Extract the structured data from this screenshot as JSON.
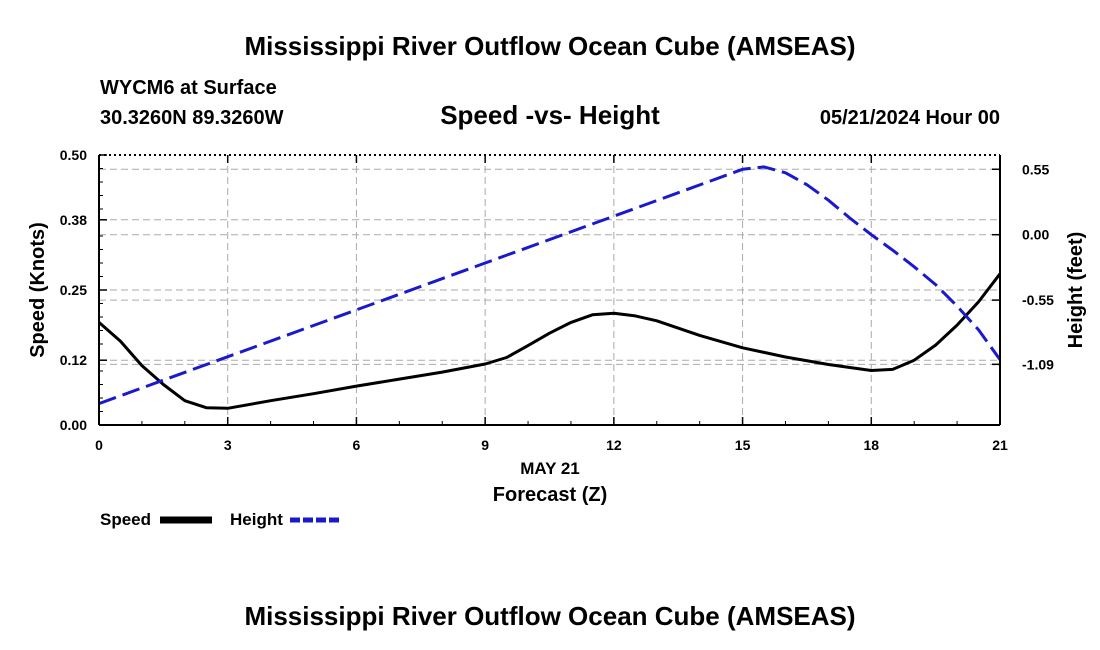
{
  "title": "Mississippi River Outflow Ocean Cube (AMSEAS)",
  "footer_title": "Mississippi River Outflow Ocean Cube (AMSEAS)",
  "station": "WYCM6 at Surface",
  "location": "30.3260N  89.3260W",
  "date_hour": "05/21/2024 Hour 00",
  "colors": {
    "speed": "#000000",
    "height": "#1a1acc",
    "grid": "#aaaaaa"
  },
  "chart_data": {
    "type": "line",
    "title": "Speed -vs- Height",
    "xlabel": "Forecast (Z)",
    "date_label": "MAY 21",
    "ylabel": "Speed (Knots)",
    "y2label": "Height (feet)",
    "xlim": [
      0,
      21
    ],
    "ylim": [
      0,
      0.5
    ],
    "y2lim": [
      -1.6,
      0.67
    ],
    "x_ticks": [
      "0",
      "3",
      "6",
      "9",
      "12",
      "15",
      "18",
      "21"
    ],
    "y_ticks": [
      "0.00",
      "0.12",
      "0.25",
      "0.38",
      "0.50"
    ],
    "y2_ticks": [
      "0.55",
      "0.00",
      "-0.55",
      "-1.09"
    ],
    "legend": [
      "Speed",
      "Height"
    ],
    "series": [
      {
        "name": "Speed",
        "axis": "left",
        "x": [
          0,
          0.5,
          1,
          1.5,
          2,
          2.5,
          3,
          4,
          5,
          6,
          7,
          8,
          9,
          9.5,
          10,
          10.5,
          11,
          11.5,
          12,
          12.5,
          13,
          14,
          15,
          16,
          17,
          18,
          18.5,
          19,
          19.5,
          20,
          20.5,
          21
        ],
        "values": [
          0.19,
          0.155,
          0.11,
          0.075,
          0.045,
          0.032,
          0.031,
          0.045,
          0.058,
          0.072,
          0.085,
          0.098,
          0.113,
          0.125,
          0.147,
          0.17,
          0.19,
          0.204,
          0.207,
          0.202,
          0.193,
          0.166,
          0.143,
          0.126,
          0.112,
          0.101,
          0.103,
          0.12,
          0.148,
          0.185,
          0.228,
          0.28
        ]
      },
      {
        "name": "Height",
        "axis": "right",
        "x": [
          0,
          15,
          15.5,
          16,
          16.5,
          17,
          17.5,
          18,
          18.5,
          19,
          19.5,
          20,
          20.5,
          21
        ],
        "values": [
          -1.42,
          0.55,
          0.57,
          0.52,
          0.42,
          0.29,
          0.14,
          0.0,
          -0.13,
          -0.27,
          -0.42,
          -0.6,
          -0.8,
          -1.05
        ]
      }
    ]
  }
}
